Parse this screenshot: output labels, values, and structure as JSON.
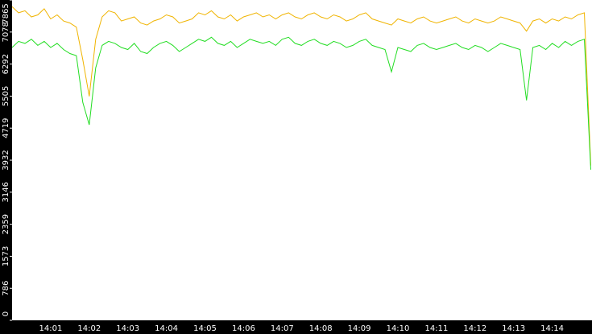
{
  "chart_data": {
    "type": "line",
    "categories": [
      null,
      null,
      null,
      null,
      null,
      null,
      "14:01",
      null,
      null,
      null,
      null,
      null,
      "14:02",
      null,
      null,
      null,
      null,
      null,
      "14:03",
      null,
      null,
      null,
      null,
      null,
      "14:04",
      null,
      null,
      null,
      null,
      null,
      "14:05",
      null,
      null,
      null,
      null,
      null,
      "14:06",
      null,
      null,
      null,
      null,
      null,
      "14:07",
      null,
      null,
      null,
      null,
      null,
      "14:08",
      null,
      null,
      null,
      null,
      null,
      "14:09",
      null,
      null,
      null,
      null,
      null,
      "14:10",
      null,
      null,
      null,
      null,
      null,
      "14:11",
      null,
      null,
      null,
      null,
      null,
      "14:12",
      null,
      null,
      null,
      null,
      null,
      "14:13",
      null,
      null,
      null,
      null,
      null,
      "14:14",
      null,
      null,
      null,
      null,
      null,
      null
    ],
    "series": [
      {
        "color": "#f0b400",
        "values": [
          7700,
          7550,
          7600,
          7450,
          7500,
          7650,
          7400,
          7500,
          7350,
          7300,
          7200,
          6400,
          5500,
          6900,
          7450,
          7600,
          7550,
          7350,
          7400,
          7450,
          7300,
          7250,
          7350,
          7400,
          7500,
          7450,
          7300,
          7350,
          7400,
          7550,
          7500,
          7600,
          7450,
          7400,
          7500,
          7350,
          7450,
          7500,
          7550,
          7450,
          7500,
          7400,
          7500,
          7550,
          7450,
          7400,
          7500,
          7550,
          7450,
          7400,
          7500,
          7450,
          7350,
          7400,
          7500,
          7550,
          7400,
          7350,
          7300,
          7250,
          7400,
          7350,
          7300,
          7400,
          7450,
          7350,
          7300,
          7350,
          7400,
          7450,
          7350,
          7300,
          7400,
          7350,
          7300,
          7350,
          7450,
          7400,
          7350,
          7300,
          7100,
          7350,
          7400,
          7300,
          7400,
          7350,
          7450,
          7400,
          7500,
          7550,
          3800
        ]
      },
      {
        "color": "#22dd22",
        "values": [
          6700,
          6850,
          6800,
          6900,
          6750,
          6850,
          6700,
          6800,
          6650,
          6550,
          6500,
          5350,
          4800,
          6200,
          6750,
          6850,
          6800,
          6700,
          6650,
          6800,
          6600,
          6550,
          6700,
          6800,
          6850,
          6750,
          6600,
          6700,
          6800,
          6900,
          6850,
          6950,
          6800,
          6750,
          6850,
          6700,
          6800,
          6900,
          6850,
          6800,
          6850,
          6750,
          6900,
          6950,
          6800,
          6750,
          6850,
          6900,
          6800,
          6750,
          6850,
          6800,
          6700,
          6750,
          6850,
          6900,
          6750,
          6700,
          6650,
          6100,
          6700,
          6650,
          6600,
          6750,
          6800,
          6700,
          6650,
          6700,
          6750,
          6800,
          6700,
          6650,
          6750,
          6700,
          6600,
          6700,
          6800,
          6750,
          6700,
          6650,
          5400,
          6700,
          6750,
          6650,
          6800,
          6700,
          6850,
          6750,
          6850,
          6900,
          3700
        ]
      }
    ],
    "ylim": [
      0,
      7865
    ],
    "yticks": [
      0,
      786,
      1573,
      2359,
      3146,
      3932,
      4719,
      5505,
      6292,
      7078,
      7865
    ]
  }
}
